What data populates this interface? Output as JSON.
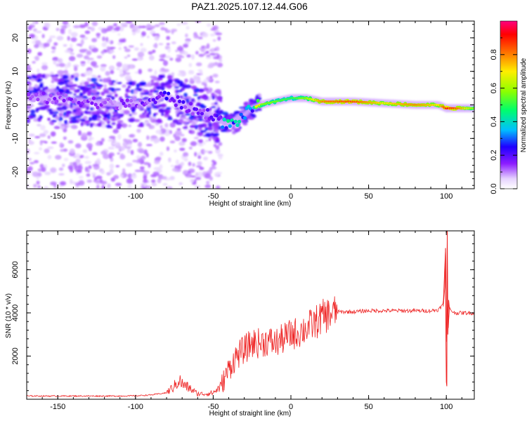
{
  "title": "PAZ1.2025.107.12.44.G06",
  "colors": {
    "snr_line": "#ee2222",
    "frame": "#000000"
  },
  "chart_data": [
    {
      "type": "heatmap",
      "title": "PAZ1.2025.107.12.44.G06",
      "xlabel": "Height of straight line (km)",
      "ylabel": "Frequency (Hz)",
      "xlim": [
        -170,
        118
      ],
      "ylim": [
        -25,
        25
      ],
      "x_ticks": [
        "-150",
        "-100",
        "-50",
        "0",
        "50",
        "100"
      ],
      "y_ticks": [
        "-20",
        "-10",
        "0",
        "10",
        "20"
      ],
      "colorbar": {
        "label": "Normalized spectral amplitude",
        "range": [
          0,
          1
        ],
        "ticks": [
          "0.0",
          "0.2",
          "0.4",
          "0.6",
          "0.8"
        ],
        "colormap": "rainbow (white → purple → blue → cyan → green → yellow → red → magenta)"
      },
      "ridge": {
        "description": "frequency of the main spectral ridge",
        "x": [
          -170,
          -150,
          -130,
          -110,
          -90,
          -80,
          -70,
          -60,
          -50,
          -45,
          -40,
          -35,
          -30,
          -25,
          -20,
          -10,
          0,
          10,
          20,
          40,
          60,
          80,
          95,
          100,
          105,
          118
        ],
        "frequency": [
          2,
          2,
          1,
          0,
          1,
          3,
          0,
          -2,
          -3,
          -5,
          -6,
          -5,
          -3,
          -1,
          0,
          1,
          2,
          2,
          1,
          1,
          0.5,
          0,
          0,
          -1,
          -1,
          -1
        ],
        "amplitude": [
          0.15,
          0.15,
          0.15,
          0.15,
          0.18,
          0.25,
          0.2,
          0.2,
          0.2,
          0.3,
          0.45,
          0.4,
          0.35,
          0.35,
          0.6,
          0.55,
          0.5,
          0.6,
          0.8,
          0.85,
          0.7,
          0.8,
          0.7,
          0.9,
          0.85,
          0.6
        ]
      }
    },
    {
      "type": "line",
      "xlabel": "Height of straight line (km)",
      "ylabel": "SNR (10 * v/v)",
      "xlim": [
        -170,
        118
      ],
      "ylim": [
        0,
        7800
      ],
      "x_ticks": [
        "-150",
        "-100",
        "-50",
        "0",
        "50",
        "100"
      ],
      "y_ticks": [
        "2000",
        "4000",
        "6000"
      ],
      "series": [
        {
          "x": [
            -170,
            -150,
            -130,
            -110,
            -100,
            -90,
            -80,
            -75,
            -72,
            -70,
            -65,
            -60,
            -55,
            -50,
            -45,
            -40,
            -35,
            -30,
            -25,
            -20,
            -15,
            -10,
            -5,
            0,
            5,
            10,
            15,
            20,
            25,
            30,
            40,
            50,
            60,
            70,
            80,
            90,
            95,
            98,
            99.5,
            100,
            100.5,
            101,
            102,
            105,
            110,
            118
          ],
          "values": [
            150,
            150,
            150,
            150,
            160,
            200,
            300,
            600,
            900,
            700,
            500,
            250,
            250,
            300,
            600,
            1400,
            2000,
            2300,
            2600,
            2600,
            2700,
            2600,
            2800,
            3000,
            3100,
            3300,
            3500,
            3800,
            3950,
            4050,
            4050,
            4100,
            4100,
            4100,
            4100,
            4100,
            4150,
            4400,
            7000,
            800,
            7800,
            3000,
            4200,
            4000,
            4000,
            4000
          ]
        }
      ]
    }
  ]
}
